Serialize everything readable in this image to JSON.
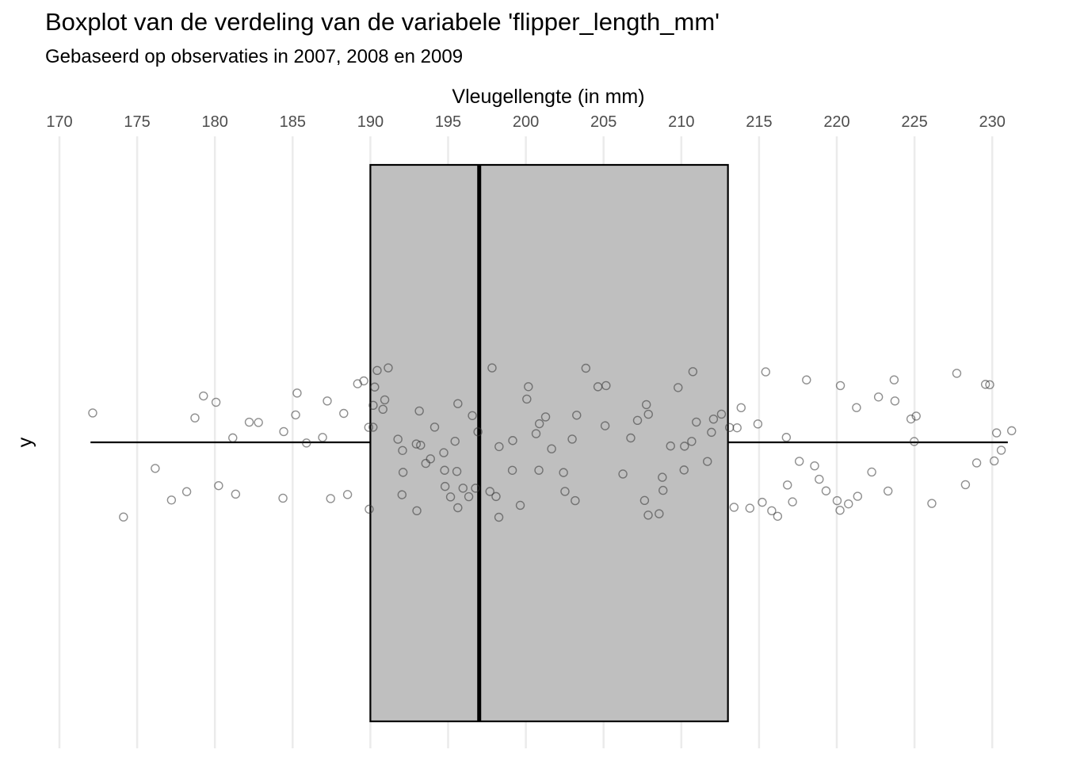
{
  "title": "Boxplot van de verdeling van de variabele 'flipper_length_mm'",
  "subtitle": "Gebaseerd op observaties in 2007, 2008 en 2009",
  "chart_data": {
    "type": "box",
    "orientation": "horizontal",
    "xlabel": "Vleugellengte (in mm)",
    "ylabel": "y",
    "x_axis_position": "top",
    "xlim": [
      170,
      231
    ],
    "xticks": [
      170,
      175,
      180,
      185,
      190,
      195,
      200,
      205,
      210,
      215,
      220,
      225,
      230
    ],
    "grid": "vertical major gridlines",
    "box": {
      "min": 172,
      "q1": 190,
      "median": 197,
      "q3": 213,
      "max": 231
    },
    "colors": {
      "box_fill": "#bfbfbf",
      "box_border": "#000000",
      "points": "#333333",
      "grid": "#ebebeb"
    },
    "points": [
      172,
      174,
      176,
      177.5,
      178,
      178.5,
      179,
      180,
      180.5,
      181,
      181.5,
      182,
      183,
      184,
      184.5,
      185,
      185.5,
      186,
      186.5,
      187,
      187.5,
      188,
      188.5,
      189,
      189.5,
      190,
      190,
      190,
      190,
      190.5,
      190.5,
      191,
      191,
      191,
      191.5,
      192,
      192,
      192.5,
      193,
      193,
      193,
      193.5,
      193.5,
      194,
      194,
      194.5,
      195,
      195,
      195,
      195,
      195.5,
      196,
      196,
      196,
      196.5,
      197,
      197,
      197,
      197.5,
      198,
      198,
      198,
      198.5,
      199,
      199,
      199.5,
      200,
      200,
      200.5,
      201,
      201,
      201.5,
      202,
      202,
      202.5,
      203,
      203,
      203.5,
      204,
      205,
      205,
      205.5,
      206,
      207,
      207,
      207.5,
      208,
      208,
      208,
      208.5,
      209,
      209,
      209.5,
      210,
      210,
      210,
      210.5,
      211,
      211,
      211.5,
      212,
      212,
      212.5,
      213,
      213,
      213.5,
      214,
      214.5,
      215,
      215,
      215.5,
      216,
      216,
      216.5,
      217,
      217,
      217.5,
      218,
      218.5,
      219,
      219.5,
      220,
      220,
      220.5,
      221,
      221,
      221.5,
      222,
      222.5,
      223,
      223.5,
      224,
      225,
      225,
      225.5,
      226,
      228,
      228.5,
      229,
      229.5,
      230,
      230,
      230,
      230.5,
      231
    ]
  }
}
